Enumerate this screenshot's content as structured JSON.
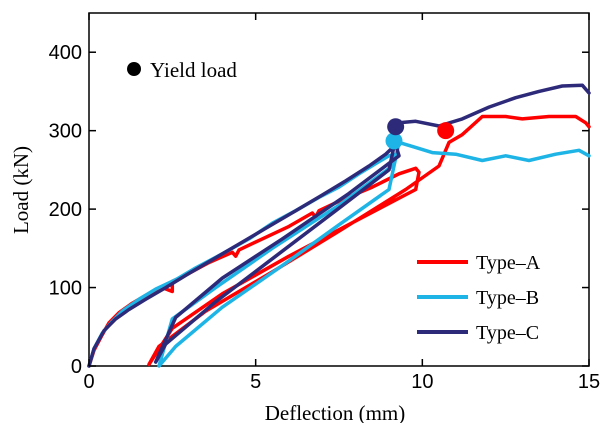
{
  "chart_data": {
    "type": "line",
    "xlabel": "Deflection (mm)",
    "ylabel": "Load (kN)",
    "xlim": [
      0,
      15
    ],
    "ylim": [
      0,
      450
    ],
    "x_ticks": [
      0,
      5,
      10,
      15
    ],
    "y_ticks": [
      0,
      100,
      200,
      300,
      400
    ],
    "grid": false,
    "legend": "bottom-right",
    "annotation": {
      "label": "Yield load",
      "placement": "top-left"
    },
    "series": [
      {
        "name": "Type–A",
        "color": "#ff0000",
        "points": [
          [
            0,
            0
          ],
          [
            0.15,
            20
          ],
          [
            0.4,
            40
          ],
          [
            0.6,
            55
          ],
          [
            0.9,
            68
          ],
          [
            1.3,
            80
          ],
          [
            1.7,
            90
          ],
          [
            2.2,
            100
          ],
          [
            2.5,
            95
          ],
          [
            2.5,
            108
          ],
          [
            3.0,
            118
          ],
          [
            3.6,
            132
          ],
          [
            4.3,
            145
          ],
          [
            4.4,
            140
          ],
          [
            4.5,
            148
          ],
          [
            5.2,
            162
          ],
          [
            6.0,
            178
          ],
          [
            6.7,
            195
          ],
          [
            6.8,
            190
          ],
          [
            6.9,
            198
          ],
          [
            7.6,
            212
          ],
          [
            8.5,
            228
          ],
          [
            9.3,
            245
          ],
          [
            9.8,
            252
          ],
          [
            9.9,
            247
          ],
          [
            9.8,
            225
          ],
          [
            8.0,
            185
          ],
          [
            6.0,
            140
          ],
          [
            4.0,
            92
          ],
          [
            2.5,
            48
          ],
          [
            1.8,
            2
          ],
          [
            2.1,
            25
          ],
          [
            3.5,
            70
          ],
          [
            5.5,
            120
          ],
          [
            7.5,
            172
          ],
          [
            9.5,
            225
          ],
          [
            10.5,
            255
          ],
          [
            10.8,
            285
          ],
          [
            11.2,
            295
          ],
          [
            11.8,
            318
          ],
          [
            12.5,
            318
          ],
          [
            13.0,
            315
          ],
          [
            13.8,
            318
          ],
          [
            14.6,
            318
          ],
          [
            14.9,
            310
          ],
          [
            15.0,
            305
          ]
        ]
      },
      {
        "name": "Type–B",
        "color": "#1eb4e6",
        "points": [
          [
            0,
            0
          ],
          [
            0.15,
            22
          ],
          [
            0.4,
            42
          ],
          [
            0.7,
            57
          ],
          [
            1.0,
            70
          ],
          [
            1.5,
            85
          ],
          [
            2.0,
            98
          ],
          [
            2.6,
            110
          ],
          [
            3.2,
            125
          ],
          [
            4.0,
            143
          ],
          [
            4.8,
            162
          ],
          [
            5.5,
            182
          ],
          [
            6.2,
            198
          ],
          [
            6.9,
            215
          ],
          [
            7.5,
            228
          ],
          [
            8.1,
            245
          ],
          [
            8.6,
            258
          ],
          [
            9.0,
            268
          ],
          [
            9.2,
            270
          ],
          [
            9.1,
            255
          ],
          [
            7.5,
            205
          ],
          [
            5.5,
            150
          ],
          [
            3.8,
            100
          ],
          [
            2.5,
            60
          ],
          [
            2.1,
            0
          ],
          [
            2.6,
            25
          ],
          [
            4.0,
            75
          ],
          [
            5.8,
            128
          ],
          [
            7.5,
            180
          ],
          [
            9.0,
            225
          ],
          [
            9.3,
            285
          ],
          [
            9.7,
            280
          ],
          [
            10.3,
            272
          ],
          [
            11.0,
            270
          ],
          [
            11.8,
            262
          ],
          [
            12.5,
            268
          ],
          [
            13.2,
            262
          ],
          [
            14.0,
            270
          ],
          [
            14.7,
            275
          ],
          [
            15.0,
            268
          ]
        ]
      },
      {
        "name": "Type–C",
        "color": "#2e2a7a",
        "points": [
          [
            0,
            0
          ],
          [
            0.15,
            22
          ],
          [
            0.45,
            45
          ],
          [
            0.8,
            60
          ],
          [
            1.2,
            72
          ],
          [
            1.7,
            85
          ],
          [
            2.3,
            100
          ],
          [
            3.0,
            118
          ],
          [
            3.8,
            138
          ],
          [
            4.6,
            158
          ],
          [
            5.4,
            178
          ],
          [
            6.2,
            198
          ],
          [
            7.0,
            218
          ],
          [
            7.7,
            236
          ],
          [
            8.4,
            255
          ],
          [
            8.9,
            270
          ],
          [
            9.2,
            282
          ],
          [
            9.3,
            268
          ],
          [
            7.8,
            220
          ],
          [
            5.8,
            162
          ],
          [
            4.0,
            112
          ],
          [
            2.6,
            62
          ],
          [
            2.0,
            5
          ],
          [
            2.3,
            28
          ],
          [
            3.8,
            82
          ],
          [
            5.6,
            140
          ],
          [
            7.4,
            198
          ],
          [
            9.0,
            250
          ],
          [
            9.3,
            310
          ],
          [
            9.8,
            312
          ],
          [
            10.5,
            306
          ],
          [
            11.2,
            315
          ],
          [
            12.0,
            330
          ],
          [
            12.8,
            342
          ],
          [
            13.5,
            350
          ],
          [
            14.2,
            357
          ],
          [
            14.8,
            358
          ],
          [
            15.0,
            348
          ]
        ]
      }
    ],
    "yield_points": [
      {
        "series": "Type–A",
        "x": 10.7,
        "y": 300
      },
      {
        "series": "Type–B",
        "x": 9.15,
        "y": 287
      },
      {
        "series": "Type–C",
        "x": 9.2,
        "y": 305
      }
    ]
  }
}
